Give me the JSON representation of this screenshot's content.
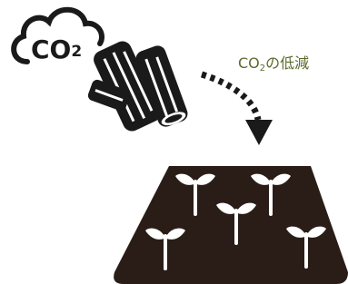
{
  "cloud_label": {
    "main": "CO",
    "sub": "2"
  },
  "caption": {
    "main": "CO",
    "sub": "2",
    "rest": "の低減"
  }
}
